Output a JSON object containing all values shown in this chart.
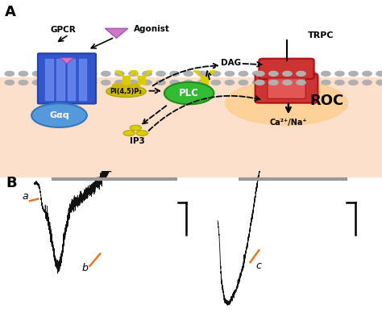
{
  "panel_A_label": "A",
  "panel_B_label": "B",
  "gpcr_label": "GPCR",
  "agonist_label": "Agonist",
  "trpc_label": "TRPC",
  "gaq_label": "Gαq",
  "pip2_label": "PI(4,5)P₂",
  "plc_label": "PLC",
  "dag_label": "DAG",
  "roc_label": "ROC",
  "ip3_label": "IP3",
  "ca_label": "Ca²⁺/Na⁺",
  "orange_color": "#E87722",
  "label_a": "a",
  "label_b": "b",
  "label_c": "c",
  "trace_color": "#111111",
  "scalebar_color": "#333333",
  "gray_bar_color": "#999999",
  "membrane_dot_color": "#b0b0b0",
  "intra_bg": "#fde0cc",
  "extra_bg": "#ffffff",
  "gpcr_color": "#3355cc",
  "gpcr_edge": "#2244aa",
  "gpcr_light": "#6688ee",
  "agonist_color": "#cc77cc",
  "agonist_edge": "#9944aa",
  "gaq_color": "#5599dd",
  "gaq_edge": "#3377bb",
  "yellow_color": "#ddcc00",
  "pip2_bg": "#ccbb00",
  "plc_color": "#33bb33",
  "plc_edge": "#228822",
  "trpc_color": "#cc3333",
  "trpc_edge": "#aa1111",
  "trpc_light": "#ee6666",
  "glow_color": "#ffcc88"
}
